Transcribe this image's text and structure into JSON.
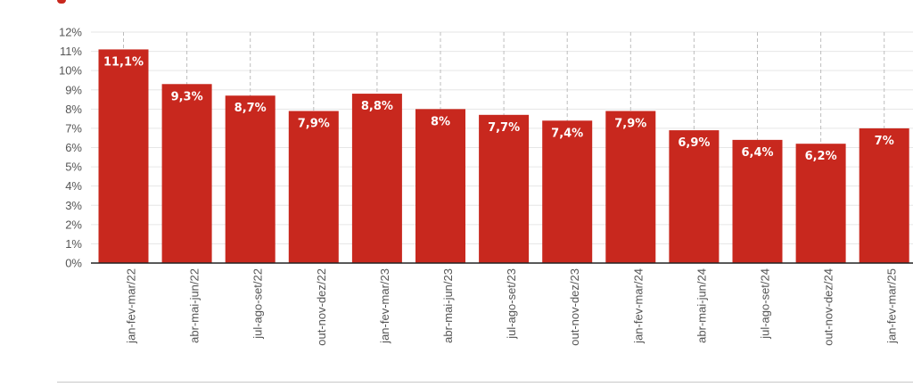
{
  "chart_data": {
    "type": "bar",
    "categories": [
      "jan-fev-mar/22",
      "abr-mai-jun/22",
      "jul-ago-set/22",
      "out-nov-dez/22",
      "jan-fev-mar/23",
      "abr-mai-jun/23",
      "jul-ago-set/23",
      "out-nov-dez/23",
      "jan-fev-mar/24",
      "abr-mai-jun/24",
      "jul-ago-set/24",
      "out-nov-dez/24",
      "jan-fev-mar/25"
    ],
    "values": [
      11.1,
      9.3,
      8.7,
      7.9,
      8.8,
      8,
      7.7,
      7.4,
      7.9,
      6.9,
      6.4,
      6.2,
      7
    ],
    "data_labels": [
      "11,1%",
      "9,3%",
      "8,7%",
      "7,9%",
      "8,8%",
      "8%",
      "7,7%",
      "7,4%",
      "7,9%",
      "6,9%",
      "6,4%",
      "6,2%",
      "7%"
    ],
    "y_ticks": [
      "0%",
      "1%",
      "2%",
      "3%",
      "4%",
      "5%",
      "6%",
      "7%",
      "8%",
      "9%",
      "10%",
      "11%",
      "12%"
    ],
    "ylim": [
      0,
      12
    ],
    "grid": true,
    "bar_color": "#c8281e",
    "title": "",
    "xlabel": "",
    "ylabel": ""
  }
}
